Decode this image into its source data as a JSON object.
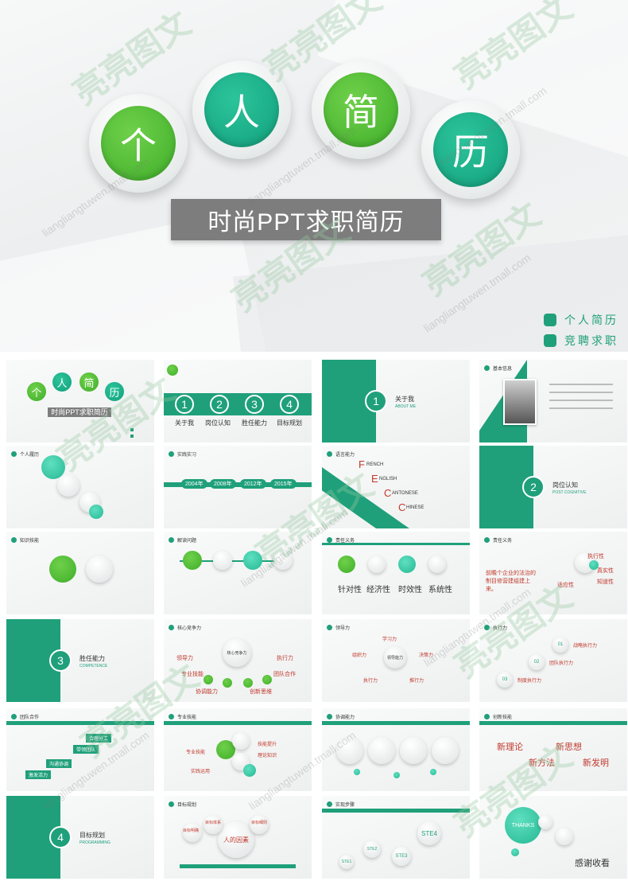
{
  "hero": {
    "chars": [
      "个",
      "人",
      "简",
      "历"
    ],
    "subtitle": "时尚PPT求职简历",
    "legend": [
      {
        "label": "个人简历",
        "color": "#1fa07a"
      },
      {
        "label": "竞聘求职",
        "color": "#1fa07a"
      }
    ]
  },
  "watermark": {
    "brand": "亮亮图文",
    "url": "liangliangtuwen.tmall.com"
  },
  "slides": {
    "s1": {
      "chars": [
        "个",
        "人",
        "简",
        "历"
      ],
      "subtitle": "时尚PPT求职简历"
    },
    "s2": {
      "nums": [
        "1",
        "2",
        "3",
        "4"
      ],
      "labels": [
        "关于我",
        "岗位认知",
        "胜任能力",
        "目标规划"
      ]
    },
    "s3": {
      "num": "1",
      "label": "关于我",
      "sub": "ABOUT ME"
    },
    "s4": {
      "header": "基本信息"
    },
    "s5": {
      "header": "个人履历"
    },
    "s6": {
      "header": "实践实习",
      "years": [
        "2004年",
        "2008年",
        "2012年",
        "2015年"
      ]
    },
    "s7": {
      "header": "语言能力",
      "letters": [
        "F",
        "E",
        "C",
        "C"
      ],
      "words": [
        "RENCH",
        "NGLISH",
        "ANTONESE",
        "HINESE"
      ]
    },
    "s8": {
      "num": "2",
      "label": "岗位认知",
      "sub": "POST COGNITIVE"
    },
    "s9": {
      "header": "知识技能"
    },
    "s10": {
      "header": "解读问题"
    },
    "s11": {
      "header": "责任义务",
      "labels": [
        "针对性",
        "经济性",
        "时效性",
        "系统性"
      ]
    },
    "s12": {
      "header": "责任义务",
      "big": "前瞻个企业的法治的制目修营建组建上来。",
      "tags": [
        "执行性",
        "真实性",
        "知道性",
        "适应性"
      ]
    },
    "s13": {
      "num": "3",
      "label": "胜任能力",
      "sub": "COMPETENCE"
    },
    "s14": {
      "header": "核心竞争力",
      "center": "核心竞争力",
      "tags": [
        "领导力",
        "执行力",
        "专业技能",
        "团队合作",
        "协调能力",
        "创新思维"
      ]
    },
    "s15": {
      "header": "领导力",
      "center": "领导能力",
      "tags": [
        "学习力",
        "决策力",
        "组织力",
        "推行力",
        "执行力"
      ]
    },
    "s16": {
      "header": "执行力",
      "nums": [
        "01",
        "02",
        "03"
      ],
      "tags": [
        "战略执行力",
        "团队执行力",
        "制度执行力"
      ]
    },
    "s17": {
      "header": "团队合作",
      "tags": [
        "合理分工",
        "带领团队",
        "沟通协调",
        "激发活力"
      ]
    },
    "s18": {
      "header": "专业技能",
      "tags": [
        "专业技能",
        "技能提升",
        "理论知识",
        "实践运用"
      ]
    },
    "s19": {
      "header": "协调能力"
    },
    "s20": {
      "header": "创新技能",
      "tags": [
        "新理论",
        "新思想",
        "新方法",
        "新发明"
      ]
    },
    "s21": {
      "num": "4",
      "label": "目标规划",
      "sub": "PROGRAMMING"
    },
    "s22": {
      "header": "目标规划",
      "center": "人的因素",
      "tags": [
        "目标明确",
        "目标体系",
        "目标细则"
      ]
    },
    "s23": {
      "header": "实现步骤",
      "steps": [
        "STE1",
        "STE2",
        "STE3",
        "STE4"
      ]
    },
    "s24": {
      "thanks": "THANKS",
      "text": "感谢收看"
    }
  }
}
